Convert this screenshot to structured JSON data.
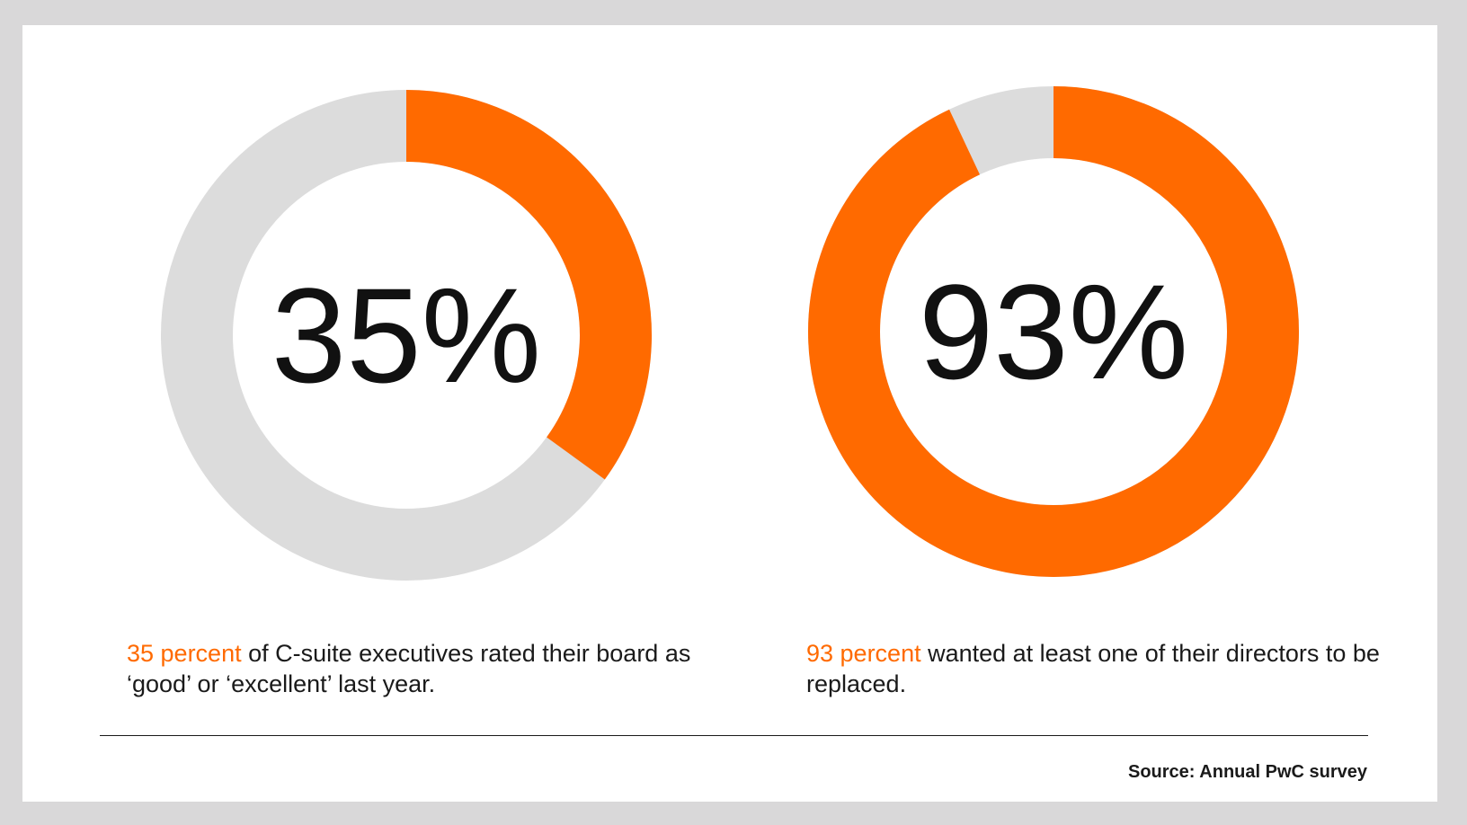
{
  "colors": {
    "accent": "#ff6a00",
    "track": "#dcdcdc",
    "text": "#1a1a1a",
    "background": "#d9d8d9"
  },
  "chart_data": [
    {
      "type": "pie",
      "values": [
        35,
        65
      ],
      "center_label": "35%",
      "caption_highlight": "35 percent",
      "caption_rest": " of C-suite executives rated their board as ‘good’ or ‘excellent’ last year."
    },
    {
      "type": "pie",
      "values": [
        93,
        7
      ],
      "center_label": "93%",
      "caption_highlight": "93 percent",
      "caption_rest": " wanted at least one of their directors to be replaced."
    }
  ],
  "footer": {
    "source": "Source: Annual PwC survey"
  }
}
